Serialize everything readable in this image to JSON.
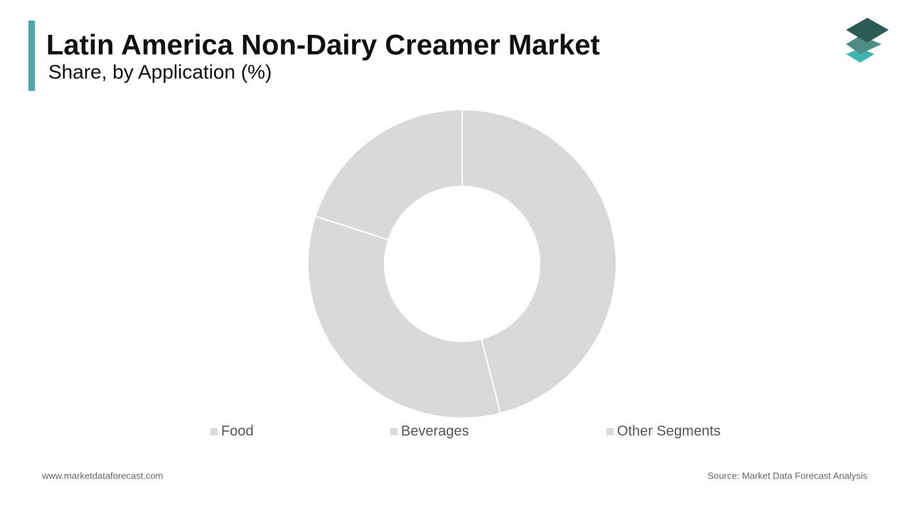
{
  "chart_data": {
    "type": "pie",
    "title": "Latin America Non-Dairy Creamer Market",
    "subtitle": "Share, by Application (%)",
    "categories": [
      "Food",
      "Beverages",
      "Other Segments"
    ],
    "values": [
      46,
      34,
      20
    ],
    "colors": [
      "#d9d9d9",
      "#d9d9d9",
      "#d9d9d9"
    ],
    "donut": true
  },
  "footer": {
    "website": "www.marketdataforecast.com",
    "source": "Source: Market Data Forecast Analysis"
  }
}
